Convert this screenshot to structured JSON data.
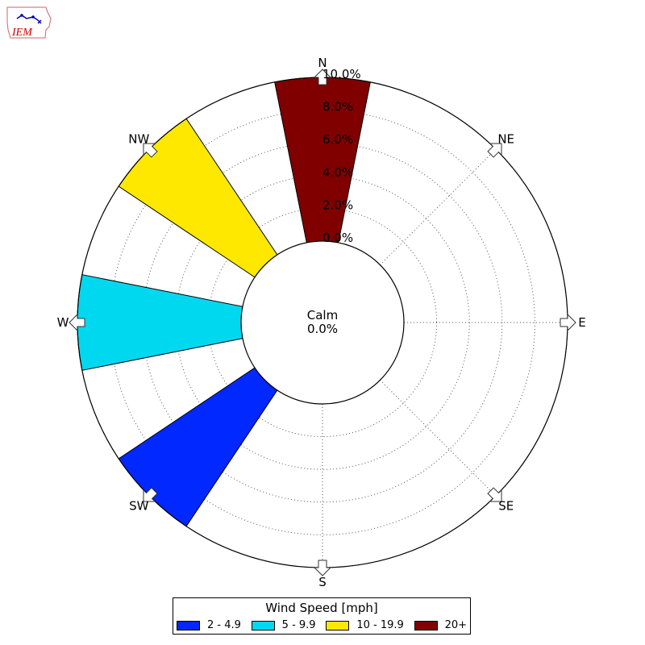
{
  "logo": {
    "text": "IEM",
    "color": "#cc0000"
  },
  "chart_data": {
    "type": "windrose",
    "directions": [
      "N",
      "NE",
      "E",
      "SE",
      "S",
      "SW",
      "W",
      "NW"
    ],
    "sectors_deg": [
      0,
      22.5,
      45,
      67.5,
      90,
      112.5,
      135,
      157.5,
      180,
      202.5,
      225,
      247.5,
      270,
      292.5,
      315,
      337.5
    ],
    "radial_ticks": [
      "0.0%",
      "2.0%",
      "4.0%",
      "6.0%",
      "8.0%",
      "10.0%"
    ],
    "radial_max": 10.0,
    "calm": {
      "label": "Calm",
      "value": "0.0%"
    },
    "legend_title": "Wind Speed [mph]",
    "bins": [
      {
        "label": "2 - 4.9",
        "color": "#0028ff"
      },
      {
        "label": "5 - 9.9",
        "color": "#00d8f0"
      },
      {
        "label": "10 - 19.9",
        "color": "#ffe800"
      },
      {
        "label": "20+",
        "color": "#800000"
      }
    ],
    "petals": [
      {
        "direction_deg": 0,
        "bin": "20+",
        "value": 10.0
      },
      {
        "direction_deg": 225,
        "bin": "2 - 4.9",
        "value": 10.0
      },
      {
        "direction_deg": 270,
        "bin": "5 - 9.9",
        "value": 10.0
      },
      {
        "direction_deg": 315,
        "bin": "10 - 19.9",
        "value": 10.0
      }
    ]
  }
}
